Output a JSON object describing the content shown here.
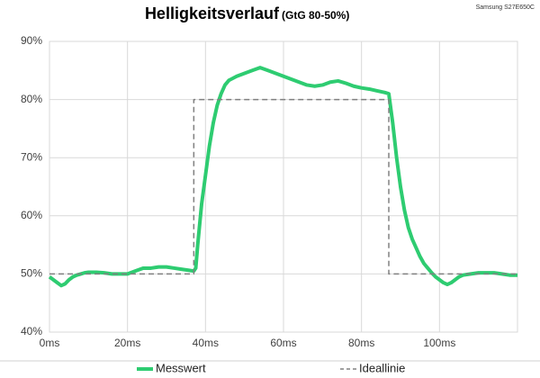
{
  "chart_data": {
    "type": "line",
    "title": "Helligkeitsverlauf",
    "subtitle": "(GtG 80-50%)",
    "annotation": "Samsung S27E650C",
    "xlim": [
      0,
      120
    ],
    "ylim": [
      40,
      90
    ],
    "xticks": [
      {
        "value": 0,
        "label": "0ms"
      },
      {
        "value": 20,
        "label": "20ms"
      },
      {
        "value": 40,
        "label": "40ms"
      },
      {
        "value": 60,
        "label": "60ms"
      },
      {
        "value": 80,
        "label": "80ms"
      },
      {
        "value": 100,
        "label": "100ms"
      }
    ],
    "yticks": [
      {
        "value": 40,
        "label": "40%"
      },
      {
        "value": 50,
        "label": "50%"
      },
      {
        "value": 60,
        "label": "60%"
      },
      {
        "value": 70,
        "label": "70%"
      },
      {
        "value": 80,
        "label": "80%"
      },
      {
        "value": 90,
        "label": "90%"
      }
    ],
    "grid": true,
    "legend": "bottom",
    "series": [
      {
        "name": "Messwert",
        "color": "#2ecc71",
        "line_style": "solid",
        "x": [
          0,
          1,
          2,
          3,
          4,
          5,
          6,
          7,
          8,
          9,
          10,
          12,
          14,
          16,
          18,
          20,
          22,
          24,
          26,
          28,
          30,
          32,
          34,
          36,
          37,
          37.5,
          38,
          39,
          40,
          41,
          42,
          43,
          44,
          45,
          46,
          48,
          50,
          52,
          54,
          56,
          58,
          60,
          62,
          64,
          66,
          68,
          70,
          72,
          74,
          76,
          78,
          80,
          82,
          84,
          86,
          87,
          88,
          89,
          90,
          91,
          92,
          93,
          94,
          95,
          96,
          97,
          98,
          99,
          100,
          101,
          102,
          103,
          104,
          105,
          106,
          108,
          110,
          112,
          114,
          116,
          118,
          120
        ],
        "values": [
          49.5,
          49,
          48.5,
          48,
          48.3,
          49,
          49.5,
          49.8,
          50,
          50.2,
          50.3,
          50.3,
          50.2,
          50,
          50,
          50,
          50.5,
          51,
          51,
          51.2,
          51.2,
          51,
          50.8,
          50.6,
          50.5,
          51,
          55,
          62,
          67,
          72,
          76,
          79,
          81,
          82.5,
          83.3,
          84,
          84.5,
          85,
          85.5,
          85,
          84.5,
          84,
          83.5,
          83,
          82.5,
          82.3,
          82.5,
          83,
          83.2,
          82.8,
          82.3,
          82,
          81.8,
          81.5,
          81.2,
          81,
          76,
          70,
          65,
          61,
          58,
          56,
          54.5,
          53,
          51.8,
          51,
          50.2,
          49.5,
          49,
          48.5,
          48.2,
          48.5,
          49,
          49.5,
          49.8,
          50,
          50.2,
          50.2,
          50.2,
          50,
          49.8,
          49.8
        ]
      },
      {
        "name": "Ideallinie",
        "color": "#808080",
        "line_style": "dashed",
        "x": [
          0,
          37,
          37,
          87,
          87,
          120
        ],
        "values": [
          50,
          50,
          80,
          80,
          50,
          50
        ]
      }
    ]
  }
}
